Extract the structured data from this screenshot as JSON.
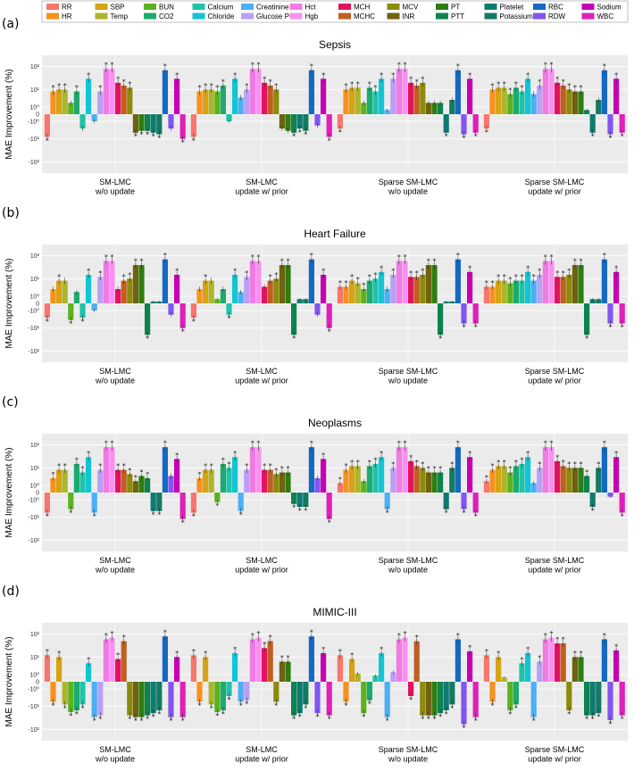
{
  "legend": [
    {
      "name": "RR",
      "color": "#F8766D"
    },
    {
      "name": "SBP",
      "color": "#D6A314"
    },
    {
      "name": "BUN",
      "color": "#5BB31F"
    },
    {
      "name": "Calcium",
      "color": "#1FC3A9"
    },
    {
      "name": "Creatinine",
      "color": "#4DAFF5"
    },
    {
      "name": "Hct",
      "color": "#F07BE3"
    },
    {
      "name": "MCH",
      "color": "#E2135E"
    },
    {
      "name": "MCV",
      "color": "#8D8A0C"
    },
    {
      "name": "PT",
      "color": "#2E7D10"
    },
    {
      "name": "Platelet",
      "color": "#0E7B71"
    },
    {
      "name": "RBC",
      "color": "#1469C3"
    },
    {
      "name": "Sodium",
      "color": "#C800B4"
    },
    {
      "name": "HR",
      "color": "#F7921E"
    },
    {
      "name": "Temp",
      "color": "#ADB52C"
    },
    {
      "name": "CO2",
      "color": "#1CAB6E"
    },
    {
      "name": "Chloride",
      "color": "#13C5D4"
    },
    {
      "name": "Glucose POC",
      "color": "#B9A0F5"
    },
    {
      "name": "Hgb",
      "color": "#FA90F0"
    },
    {
      "name": "MCHC",
      "color": "#C05F20"
    },
    {
      "name": "INR",
      "color": "#6F6210"
    },
    {
      "name": "PTT",
      "color": "#0D8350"
    },
    {
      "name": "Potassium",
      "color": "#137A63"
    },
    {
      "name": "RDW",
      "color": "#8156F0"
    },
    {
      "name": "WBC",
      "color": "#E020B8"
    }
  ],
  "chart_data": [
    {
      "type": "bar",
      "letter": "(a)",
      "title": "Sepsis",
      "ylabel": "MAE Improvement (%)",
      "yscale": "symlog",
      "yticks": [
        "10²",
        "10¹",
        "10⁰",
        "0",
        "-10⁰",
        "-10¹",
        "-10²"
      ],
      "groups": [
        "SM-LMC\nw/o update",
        "SM-LMC\nupdate w/ prior",
        "Sparse SM-LMC\nw/o update",
        "Sparse SM-LMC\nupdate w/ prior"
      ],
      "series_order": [
        "RR",
        "HR",
        "SBP",
        "Temp",
        "BUN",
        "CO2",
        "Calcium",
        "Chloride",
        "Creatinine",
        "Glucose POC",
        "Hct",
        "Hgb",
        "MCH",
        "MCHC",
        "MCV",
        "INR",
        "PT",
        "PTT",
        "Platelet",
        "Potassium",
        "RBC",
        "RDW",
        "Sodium",
        "WBC"
      ],
      "values": [
        [
          -8,
          8,
          10,
          10,
          2,
          8,
          -3,
          30,
          -1,
          8,
          80,
          80,
          20,
          15,
          12,
          -5,
          -4,
          -4,
          -5,
          -6,
          70,
          -3,
          30,
          -10
        ],
        [
          -8,
          8,
          10,
          10,
          8,
          15,
          -1,
          30,
          4,
          10,
          80,
          80,
          20,
          15,
          10,
          -3,
          -4,
          -5,
          -3,
          -4,
          70,
          -2,
          30,
          -8
        ],
        [
          -3,
          10,
          12,
          12,
          2,
          12,
          8,
          30,
          0.5,
          30,
          80,
          80,
          20,
          15,
          20,
          2,
          2,
          2,
          -5,
          3,
          70,
          -6,
          30,
          -5
        ],
        [
          -3,
          10,
          12,
          12,
          6,
          12,
          8,
          30,
          6,
          15,
          80,
          80,
          20,
          15,
          10,
          8,
          8,
          0.5,
          -5,
          3,
          70,
          -6,
          30,
          -5
        ]
      ],
      "stars": [
        [
          1,
          1,
          1,
          1,
          0,
          1,
          0,
          1,
          0,
          1,
          1,
          1,
          1,
          1,
          1,
          1,
          1,
          1,
          1,
          1,
          1,
          0,
          1,
          1
        ],
        [
          1,
          1,
          1,
          1,
          1,
          1,
          0,
          1,
          0,
          1,
          1,
          1,
          1,
          1,
          1,
          0,
          0,
          1,
          1,
          1,
          1,
          0,
          1,
          1
        ],
        [
          1,
          1,
          1,
          1,
          0,
          1,
          1,
          1,
          0,
          1,
          1,
          1,
          1,
          1,
          1,
          0,
          0,
          0,
          1,
          0,
          1,
          1,
          1,
          1
        ],
        [
          1,
          1,
          1,
          1,
          1,
          1,
          1,
          1,
          0,
          1,
          1,
          1,
          1,
          1,
          1,
          1,
          1,
          0,
          1,
          0,
          1,
          1,
          1,
          1
        ]
      ]
    },
    {
      "type": "bar",
      "letter": "(b)",
      "title": "Heart Failure",
      "ylabel": "MAE Improvement (%)",
      "yscale": "symlog",
      "yticks": [
        "10²",
        "10¹",
        "10⁰",
        "0",
        "-10⁰",
        "-10¹",
        "-10²"
      ],
      "groups": [
        "SM-LMC\nw/o update",
        "SM-LMC\nupdate w/ prior",
        "Sparse SM-LMC\nw/o update",
        "Sparse SM-LMC\nupdate w/ prior"
      ],
      "series_order": [
        "RR",
        "HR",
        "SBP",
        "Temp",
        "BUN",
        "CO2",
        "Calcium",
        "Chloride",
        "Creatinine",
        "Glucose POC",
        "Hct",
        "Hgb",
        "MCH",
        "MCHC",
        "MCV",
        "INR",
        "PT",
        "PTT",
        "Platelet",
        "Potassium",
        "RBC",
        "RDW",
        "Sodium",
        "WBC"
      ],
      "values": [
        [
          -3,
          3,
          8,
          8,
          -4,
          2,
          -3,
          15,
          -1,
          12,
          60,
          60,
          3,
          8,
          10,
          40,
          40,
          -20,
          0.2,
          0.2,
          70,
          -2,
          15,
          -10
        ],
        [
          -3,
          3,
          8,
          8,
          0.5,
          3,
          -2,
          15,
          2,
          12,
          60,
          60,
          4,
          8,
          10,
          40,
          40,
          -20,
          0.5,
          0.5,
          70,
          -2,
          15,
          -10
        ],
        [
          4,
          4,
          8,
          6,
          3,
          8,
          10,
          20,
          3,
          15,
          60,
          60,
          12,
          12,
          15,
          40,
          40,
          -20,
          0.2,
          0.2,
          70,
          -6,
          20,
          -6
        ],
        [
          4,
          4,
          8,
          8,
          6,
          8,
          8,
          20,
          8,
          15,
          60,
          60,
          12,
          12,
          15,
          40,
          40,
          -20,
          0.5,
          0.5,
          70,
          -6,
          20,
          -6
        ]
      ],
      "stars": [
        [
          1,
          0,
          1,
          0,
          1,
          0,
          1,
          1,
          0,
          1,
          1,
          1,
          0,
          1,
          1,
          1,
          1,
          1,
          0,
          0,
          1,
          0,
          1,
          1
        ],
        [
          1,
          0,
          1,
          0,
          0,
          0,
          1,
          1,
          0,
          1,
          1,
          1,
          0,
          1,
          1,
          1,
          1,
          1,
          0,
          0,
          1,
          0,
          1,
          1
        ],
        [
          1,
          1,
          1,
          1,
          1,
          1,
          1,
          1,
          0,
          1,
          1,
          1,
          1,
          1,
          1,
          1,
          1,
          1,
          0,
          0,
          1,
          1,
          1,
          1
        ],
        [
          1,
          1,
          1,
          1,
          1,
          1,
          1,
          1,
          1,
          1,
          1,
          1,
          1,
          1,
          1,
          1,
          1,
          1,
          0,
          0,
          1,
          1,
          1,
          1
        ]
      ]
    },
    {
      "type": "bar",
      "letter": "(c)",
      "title": "Neoplasms",
      "ylabel": "MAE Improvement (%)",
      "yscale": "symlog",
      "yticks": [
        "10²",
        "10¹",
        "10⁰",
        "0",
        "-10⁰",
        "-10¹",
        "-10²"
      ],
      "groups": [
        "SM-LMC\nw/o update",
        "SM-LMC\nupdate w/ prior",
        "Sparse SM-LMC\nw/o update",
        "Sparse SM-LMC\nupdate w/ prior"
      ],
      "series_order": [
        "RR",
        "HR",
        "SBP",
        "Temp",
        "BUN",
        "CO2",
        "Calcium",
        "Chloride",
        "Creatinine",
        "Glucose POC",
        "Hct",
        "Hgb",
        "MCH",
        "MCHC",
        "MCV",
        "INR",
        "PT",
        "PTT",
        "Platelet",
        "Potassium",
        "RBC",
        "RDW",
        "Sodium",
        "WBC"
      ],
      "values": [
        [
          -6,
          3,
          8,
          8,
          -4,
          15,
          6,
          30,
          -6,
          8,
          80,
          80,
          8,
          8,
          5,
          2,
          4,
          3,
          -5,
          -5,
          80,
          4,
          25,
          -12
        ],
        [
          -6,
          3,
          8,
          8,
          -1.5,
          15,
          10,
          30,
          -5,
          8,
          80,
          80,
          8,
          8,
          5,
          6,
          6,
          -2,
          -3,
          -3,
          80,
          3,
          25,
          -12
        ],
        [
          1.5,
          8,
          12,
          12,
          2,
          12,
          15,
          30,
          -4,
          10,
          80,
          80,
          20,
          12,
          10,
          6,
          6,
          6,
          -4,
          10,
          80,
          -4,
          30,
          -6
        ],
        [
          2,
          8,
          12,
          12,
          6,
          12,
          15,
          30,
          1.5,
          10,
          80,
          80,
          20,
          12,
          10,
          10,
          10,
          4,
          -3,
          10,
          80,
          -0.5,
          30,
          -6
        ]
      ],
      "stars": [
        [
          1,
          1,
          1,
          1,
          1,
          1,
          1,
          1,
          1,
          1,
          1,
          1,
          1,
          1,
          1,
          1,
          1,
          1,
          1,
          1,
          1,
          0,
          1,
          1
        ],
        [
          1,
          1,
          1,
          1,
          1,
          1,
          1,
          1,
          1,
          1,
          1,
          1,
          1,
          1,
          1,
          1,
          1,
          1,
          1,
          1,
          1,
          0,
          1,
          1
        ],
        [
          1,
          1,
          1,
          1,
          0,
          1,
          1,
          1,
          1,
          1,
          1,
          1,
          1,
          1,
          1,
          1,
          1,
          1,
          1,
          1,
          1,
          1,
          1,
          1
        ],
        [
          1,
          1,
          1,
          1,
          1,
          1,
          1,
          1,
          0,
          1,
          1,
          1,
          1,
          1,
          1,
          1,
          1,
          1,
          1,
          1,
          1,
          0,
          1,
          1
        ]
      ]
    },
    {
      "type": "bar",
      "letter": "(d)",
      "title": "MIMIC-III",
      "ylabel": "MAE Improvement (%)",
      "yscale": "symlog",
      "yticks": [
        "10²",
        "10¹",
        "10⁰",
        "0",
        "-10⁰",
        "-10¹",
        "-10²"
      ],
      "groups": [
        "SM-LMC\nw/o update",
        "SM-LMC\nupdate w/ prior",
        "Sparse SM-LMC\nw/o update",
        "Sparse SM-LMC\nupdate w/ prior"
      ],
      "series_order": [
        "RR",
        "HR",
        "SBP",
        "Temp",
        "BUN",
        "CO2",
        "Calcium",
        "Chloride",
        "Creatinine",
        "Glucose POC",
        "Hct",
        "Hgb",
        "MCH",
        "MCHC",
        "MCV",
        "INR",
        "PT",
        "PTT",
        "Platelet",
        "Potassium",
        "RBC",
        "RDW",
        "Sodium",
        "WBC"
      ],
      "values": [
        [
          12,
          -6,
          10,
          -8,
          -18,
          -15,
          -8,
          5,
          -30,
          -25,
          60,
          70,
          8,
          50,
          -25,
          -30,
          -30,
          -25,
          -20,
          -15,
          80,
          -30,
          10,
          -30
        ],
        [
          12,
          -6,
          10,
          -8,
          -18,
          -15,
          -3,
          15,
          -6,
          -5,
          60,
          70,
          25,
          50,
          -6,
          6,
          6,
          -25,
          -20,
          -8,
          80,
          -20,
          15,
          -25
        ],
        [
          12,
          -6,
          8,
          1.2,
          -20,
          -5,
          0.8,
          15,
          -30,
          1.5,
          60,
          70,
          -3,
          50,
          -25,
          -25,
          -25,
          -20,
          -15,
          -8,
          60,
          -60,
          18,
          -30
        ],
        [
          12,
          -6,
          10,
          0.5,
          -15,
          -8,
          5,
          15,
          -30,
          6,
          60,
          70,
          40,
          40,
          -15,
          10,
          10,
          -25,
          -25,
          -20,
          60,
          -40,
          20,
          -25
        ]
      ],
      "stars": [
        [
          1,
          1,
          1,
          1,
          1,
          1,
          1,
          1,
          1,
          1,
          1,
          1,
          1,
          1,
          1,
          1,
          1,
          1,
          1,
          1,
          1,
          1,
          1,
          1
        ],
        [
          1,
          1,
          1,
          1,
          1,
          1,
          1,
          1,
          1,
          1,
          1,
          1,
          1,
          1,
          1,
          1,
          1,
          1,
          1,
          1,
          1,
          1,
          1,
          1
        ],
        [
          1,
          1,
          1,
          0,
          1,
          1,
          0,
          1,
          1,
          0,
          1,
          1,
          1,
          1,
          1,
          1,
          1,
          1,
          1,
          1,
          1,
          1,
          1,
          1
        ],
        [
          1,
          1,
          1,
          0,
          1,
          1,
          1,
          1,
          1,
          1,
          1,
          1,
          1,
          1,
          1,
          1,
          1,
          1,
          1,
          1,
          1,
          1,
          1,
          1
        ]
      ]
    }
  ]
}
